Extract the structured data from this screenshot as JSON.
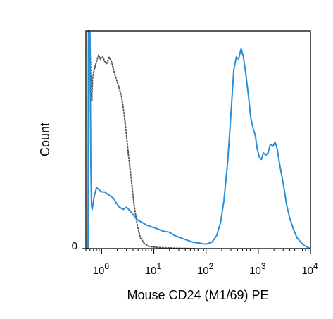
{
  "chart_data": {
    "type": "line",
    "title": "",
    "xlabel": "Mouse CD24 (M1/69) PE",
    "ylabel": "Count",
    "x_scale": "log",
    "xlim": [
      0.5,
      10000
    ],
    "ylim": [
      0,
      100
    ],
    "grid": false,
    "legend": "none",
    "x_ticks": [
      {
        "value": 1,
        "base": "10",
        "exp": "0"
      },
      {
        "value": 10,
        "base": "10",
        "exp": "1"
      },
      {
        "value": 100,
        "base": "10",
        "exp": "2"
      },
      {
        "value": 1000,
        "base": "10",
        "exp": "3"
      },
      {
        "value": 10000,
        "base": "10",
        "exp": "4"
      }
    ],
    "y_ticks": [
      {
        "value": 0,
        "label": "0"
      }
    ],
    "series": [
      {
        "style": "dotted",
        "color": "#555555",
        "points": [
          [
            0.55,
            0
          ],
          [
            0.58,
            100
          ],
          [
            0.6,
            95
          ],
          [
            0.62,
            80
          ],
          [
            0.65,
            68
          ],
          [
            0.67,
            78
          ],
          [
            0.72,
            82
          ],
          [
            0.8,
            86
          ],
          [
            0.88,
            89
          ],
          [
            0.95,
            87
          ],
          [
            1.05,
            88
          ],
          [
            1.15,
            86
          ],
          [
            1.25,
            85
          ],
          [
            1.4,
            88
          ],
          [
            1.55,
            86
          ],
          [
            1.7,
            82
          ],
          [
            1.9,
            78
          ],
          [
            2.1,
            75
          ],
          [
            2.4,
            70
          ],
          [
            2.7,
            62
          ],
          [
            3.0,
            52
          ],
          [
            3.3,
            42
          ],
          [
            3.7,
            32
          ],
          [
            4.2,
            20
          ],
          [
            4.8,
            11
          ],
          [
            5.5,
            5
          ],
          [
            6.5,
            2.5
          ],
          [
            8,
            1
          ],
          [
            12,
            0.5
          ],
          [
            25,
            0.2
          ],
          [
            60,
            0
          ]
        ]
      },
      {
        "style": "solid",
        "color": "#2a8fd8",
        "points": [
          [
            0.55,
            0
          ],
          [
            0.56,
            100
          ],
          [
            0.6,
            99
          ],
          [
            0.62,
            40
          ],
          [
            0.64,
            20
          ],
          [
            0.66,
            18
          ],
          [
            0.68,
            20
          ],
          [
            0.72,
            24
          ],
          [
            0.8,
            28
          ],
          [
            0.9,
            27
          ],
          [
            1.0,
            26
          ],
          [
            1.15,
            26
          ],
          [
            1.3,
            25
          ],
          [
            1.5,
            24
          ],
          [
            1.7,
            23
          ],
          [
            1.9,
            21
          ],
          [
            2.2,
            19
          ],
          [
            2.6,
            18
          ],
          [
            3.0,
            19
          ],
          [
            3.6,
            17
          ],
          [
            4.2,
            15
          ],
          [
            5.0,
            13
          ],
          [
            6.0,
            12
          ],
          [
            7.0,
            11
          ],
          [
            9,
            10
          ],
          [
            12,
            9
          ],
          [
            15,
            8
          ],
          [
            20,
            7.5
          ],
          [
            25,
            6
          ],
          [
            32,
            5
          ],
          [
            42,
            4
          ],
          [
            55,
            3
          ],
          [
            75,
            2.5
          ],
          [
            100,
            2
          ],
          [
            130,
            3
          ],
          [
            160,
            6
          ],
          [
            190,
            12
          ],
          [
            220,
            22
          ],
          [
            260,
            40
          ],
          [
            300,
            62
          ],
          [
            340,
            82
          ],
          [
            380,
            88
          ],
          [
            420,
            87
          ],
          [
            470,
            92
          ],
          [
            520,
            88
          ],
          [
            580,
            80
          ],
          [
            650,
            70
          ],
          [
            720,
            60
          ],
          [
            800,
            55
          ],
          [
            880,
            52
          ],
          [
            950,
            46
          ],
          [
            1050,
            42
          ],
          [
            1150,
            41
          ],
          [
            1250,
            44
          ],
          [
            1400,
            43
          ],
          [
            1550,
            44
          ],
          [
            1700,
            48
          ],
          [
            1900,
            47
          ],
          [
            2100,
            49
          ],
          [
            2300,
            46
          ],
          [
            2600,
            38
          ],
          [
            3000,
            30
          ],
          [
            3500,
            20
          ],
          [
            4000,
            14
          ],
          [
            4700,
            9
          ],
          [
            5500,
            5
          ],
          [
            6500,
            3
          ],
          [
            7500,
            1.5
          ],
          [
            9000,
            0.5
          ],
          [
            10000,
            0
          ]
        ]
      }
    ]
  }
}
